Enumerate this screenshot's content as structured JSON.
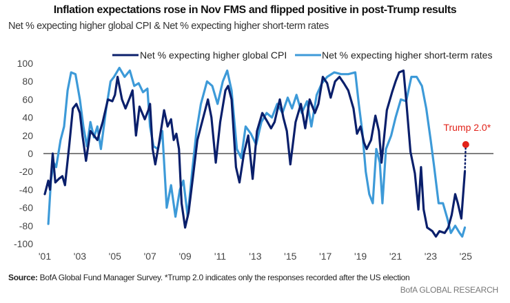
{
  "chart_data": {
    "type": "line",
    "title": "Inflation expectations rose in Nov FMS and flipped positive in post-Trump results",
    "subtitle": "Net % expecting higher global CPI & Net % expecting higher short-term rates",
    "xlabel": "",
    "ylabel": "",
    "xlim": [
      2001,
      2025.5
    ],
    "ylim": [
      -100,
      100
    ],
    "x_ticks": [
      {
        "value": 2001,
        "label": "'01"
      },
      {
        "value": 2003,
        "label": "'03"
      },
      {
        "value": 2005,
        "label": "'05"
      },
      {
        "value": 2007,
        "label": "'07"
      },
      {
        "value": 2009,
        "label": "'09"
      },
      {
        "value": 2011,
        "label": "'11"
      },
      {
        "value": 2013,
        "label": "'13"
      },
      {
        "value": 2015,
        "label": "'15"
      },
      {
        "value": 2017,
        "label": "'17"
      },
      {
        "value": 2019,
        "label": "'19"
      },
      {
        "value": 2021,
        "label": "'21"
      },
      {
        "value": 2023,
        "label": "'23"
      },
      {
        "value": 2025,
        "label": "'25"
      }
    ],
    "y_ticks": [
      100,
      80,
      60,
      40,
      20,
      0,
      -20,
      -40,
      -60,
      -80,
      -100
    ],
    "grid": false,
    "legend_position": "top",
    "series": [
      {
        "name": "Net % expecting higher global CPI",
        "color": "#0a1f6b",
        "points": [
          [
            2001.0,
            -45
          ],
          [
            2001.2,
            -30
          ],
          [
            2001.3,
            -40
          ],
          [
            2001.45,
            0
          ],
          [
            2001.6,
            -32
          ],
          [
            2001.8,
            -28
          ],
          [
            2002.0,
            -25
          ],
          [
            2002.15,
            -35
          ],
          [
            2002.4,
            10
          ],
          [
            2002.6,
            50
          ],
          [
            2002.8,
            55
          ],
          [
            2003.0,
            45
          ],
          [
            2003.15,
            20
          ],
          [
            2003.35,
            -8
          ],
          [
            2003.6,
            25
          ],
          [
            2003.8,
            20
          ],
          [
            2004.0,
            15
          ],
          [
            2004.3,
            35
          ],
          [
            2004.6,
            60
          ],
          [
            2004.85,
            58
          ],
          [
            2005.0,
            65
          ],
          [
            2005.15,
            85
          ],
          [
            2005.4,
            60
          ],
          [
            2005.6,
            50
          ],
          [
            2005.85,
            62
          ],
          [
            2006.0,
            70
          ],
          [
            2006.2,
            20
          ],
          [
            2006.4,
            52
          ],
          [
            2006.7,
            38
          ],
          [
            2006.9,
            48
          ],
          [
            2007.0,
            55
          ],
          [
            2007.15,
            5
          ],
          [
            2007.3,
            -12
          ],
          [
            2007.5,
            10
          ],
          [
            2007.8,
            48
          ],
          [
            2008.0,
            30
          ],
          [
            2008.2,
            38
          ],
          [
            2008.35,
            15
          ],
          [
            2008.5,
            22
          ],
          [
            2008.65,
            5
          ],
          [
            2008.8,
            -55
          ],
          [
            2009.0,
            -82
          ],
          [
            2009.2,
            -65
          ],
          [
            2009.45,
            -25
          ],
          [
            2009.7,
            15
          ],
          [
            2009.9,
            30
          ],
          [
            2010.1,
            45
          ],
          [
            2010.3,
            60
          ],
          [
            2010.5,
            40
          ],
          [
            2010.75,
            -10
          ],
          [
            2011.0,
            35
          ],
          [
            2011.3,
            70
          ],
          [
            2011.45,
            75
          ],
          [
            2011.65,
            60
          ],
          [
            2011.9,
            -15
          ],
          [
            2012.1,
            -32
          ],
          [
            2012.35,
            0
          ],
          [
            2012.6,
            20
          ],
          [
            2012.85,
            -28
          ],
          [
            2013.1,
            25
          ],
          [
            2013.4,
            45
          ],
          [
            2013.7,
            35
          ],
          [
            2013.9,
            28
          ],
          [
            2014.1,
            35
          ],
          [
            2014.4,
            60
          ],
          [
            2014.6,
            40
          ],
          [
            2014.8,
            25
          ],
          [
            2015.0,
            -12
          ],
          [
            2015.3,
            35
          ],
          [
            2015.6,
            55
          ],
          [
            2015.85,
            28
          ],
          [
            2016.1,
            60
          ],
          [
            2016.4,
            45
          ],
          [
            2016.6,
            55
          ],
          [
            2016.85,
            85
          ],
          [
            2017.1,
            78
          ],
          [
            2017.3,
            62
          ],
          [
            2017.55,
            80
          ],
          [
            2017.8,
            85
          ],
          [
            2018.05,
            78
          ],
          [
            2018.3,
            70
          ],
          [
            2018.6,
            50
          ],
          [
            2018.8,
            22
          ],
          [
            2019.0,
            30
          ],
          [
            2019.2,
            12
          ],
          [
            2019.35,
            5
          ],
          [
            2019.6,
            15
          ],
          [
            2019.85,
            42
          ],
          [
            2020.05,
            25
          ],
          [
            2020.2,
            -10
          ],
          [
            2020.5,
            48
          ],
          [
            2020.8,
            68
          ],
          [
            2021.0,
            80
          ],
          [
            2021.2,
            90
          ],
          [
            2021.45,
            92
          ],
          [
            2021.6,
            60
          ],
          [
            2021.85,
            2
          ],
          [
            2022.1,
            -22
          ],
          [
            2022.3,
            -62
          ],
          [
            2022.45,
            -15
          ],
          [
            2022.6,
            -62
          ],
          [
            2022.8,
            -82
          ],
          [
            2023.1,
            -86
          ],
          [
            2023.3,
            -92
          ],
          [
            2023.5,
            -86
          ],
          [
            2023.8,
            -88
          ],
          [
            2024.0,
            -82
          ],
          [
            2024.2,
            -68
          ],
          [
            2024.4,
            -45
          ],
          [
            2024.55,
            -55
          ],
          [
            2024.75,
            -72
          ],
          [
            2024.95,
            -20
          ]
        ]
      },
      {
        "name": "Net % expecting higher short-term rates",
        "color": "#3d9ad8",
        "points": [
          [
            2001.2,
            -78
          ],
          [
            2001.35,
            -30
          ],
          [
            2001.5,
            -10
          ],
          [
            2001.65,
            -15
          ],
          [
            2001.9,
            15
          ],
          [
            2002.1,
            30
          ],
          [
            2002.3,
            70
          ],
          [
            2002.5,
            90
          ],
          [
            2002.75,
            88
          ],
          [
            2003.0,
            60
          ],
          [
            2003.2,
            30
          ],
          [
            2003.4,
            8
          ],
          [
            2003.6,
            35
          ],
          [
            2003.8,
            18
          ],
          [
            2004.0,
            30
          ],
          [
            2004.2,
            5
          ],
          [
            2004.5,
            50
          ],
          [
            2004.75,
            80
          ],
          [
            2004.95,
            85
          ],
          [
            2005.25,
            95
          ],
          [
            2005.55,
            85
          ],
          [
            2005.85,
            92
          ],
          [
            2006.1,
            75
          ],
          [
            2006.35,
            78
          ],
          [
            2006.6,
            68
          ],
          [
            2006.85,
            72
          ],
          [
            2007.0,
            30
          ],
          [
            2007.2,
            8
          ],
          [
            2007.45,
            5
          ],
          [
            2007.7,
            25
          ],
          [
            2007.95,
            -60
          ],
          [
            2008.2,
            -35
          ],
          [
            2008.45,
            -70
          ],
          [
            2008.7,
            -40
          ],
          [
            2008.9,
            -30
          ],
          [
            2009.15,
            -70
          ],
          [
            2009.4,
            -20
          ],
          [
            2009.65,
            25
          ],
          [
            2009.9,
            55
          ],
          [
            2010.25,
            80
          ],
          [
            2010.55,
            75
          ],
          [
            2010.85,
            55
          ],
          [
            2011.15,
            80
          ],
          [
            2011.4,
            92
          ],
          [
            2011.65,
            70
          ],
          [
            2011.95,
            5
          ],
          [
            2012.2,
            -5
          ],
          [
            2012.45,
            30
          ],
          [
            2012.75,
            22
          ],
          [
            2013.05,
            10
          ],
          [
            2013.35,
            35
          ],
          [
            2013.65,
            45
          ],
          [
            2013.95,
            40
          ],
          [
            2014.25,
            55
          ],
          [
            2014.55,
            45
          ],
          [
            2014.85,
            62
          ],
          [
            2015.1,
            50
          ],
          [
            2015.35,
            65
          ],
          [
            2015.65,
            45
          ],
          [
            2015.95,
            58
          ],
          [
            2016.2,
            30
          ],
          [
            2016.5,
            65
          ],
          [
            2016.8,
            78
          ],
          [
            2017.1,
            85
          ],
          [
            2017.5,
            90
          ],
          [
            2017.9,
            88
          ],
          [
            2018.3,
            88
          ],
          [
            2018.7,
            90
          ],
          [
            2018.9,
            55
          ],
          [
            2019.1,
            25
          ],
          [
            2019.3,
            -20
          ],
          [
            2019.5,
            -45
          ],
          [
            2019.7,
            -55
          ],
          [
            2019.9,
            5
          ],
          [
            2020.1,
            -10
          ],
          [
            2020.25,
            -55
          ],
          [
            2020.45,
            5
          ],
          [
            2020.75,
            20
          ],
          [
            2021.0,
            40
          ],
          [
            2021.3,
            60
          ],
          [
            2021.6,
            58
          ],
          [
            2021.9,
            85
          ],
          [
            2022.2,
            85
          ],
          [
            2022.5,
            75
          ],
          [
            2022.75,
            50
          ],
          [
            2023.0,
            15
          ],
          [
            2023.2,
            -15
          ],
          [
            2023.45,
            -55
          ],
          [
            2023.7,
            -55
          ],
          [
            2023.95,
            -72
          ],
          [
            2024.15,
            -88
          ],
          [
            2024.4,
            -80
          ],
          [
            2024.65,
            -88
          ],
          [
            2024.8,
            -92
          ],
          [
            2024.95,
            -82
          ]
        ]
      }
    ],
    "annotations": [
      {
        "label": "Trump 2.0*",
        "x": 2025.0,
        "y": 10,
        "color": "#e2231a",
        "marker": "dot",
        "connector": "dotted from CPI last point"
      }
    ]
  },
  "footer": {
    "source_label": "Source:",
    "source_text": " BofA Global Fund Manager Survey. *Trump 2.0 indicates only the responses recorded after the US election",
    "brand": "BofA GLOBAL RESEARCH"
  }
}
